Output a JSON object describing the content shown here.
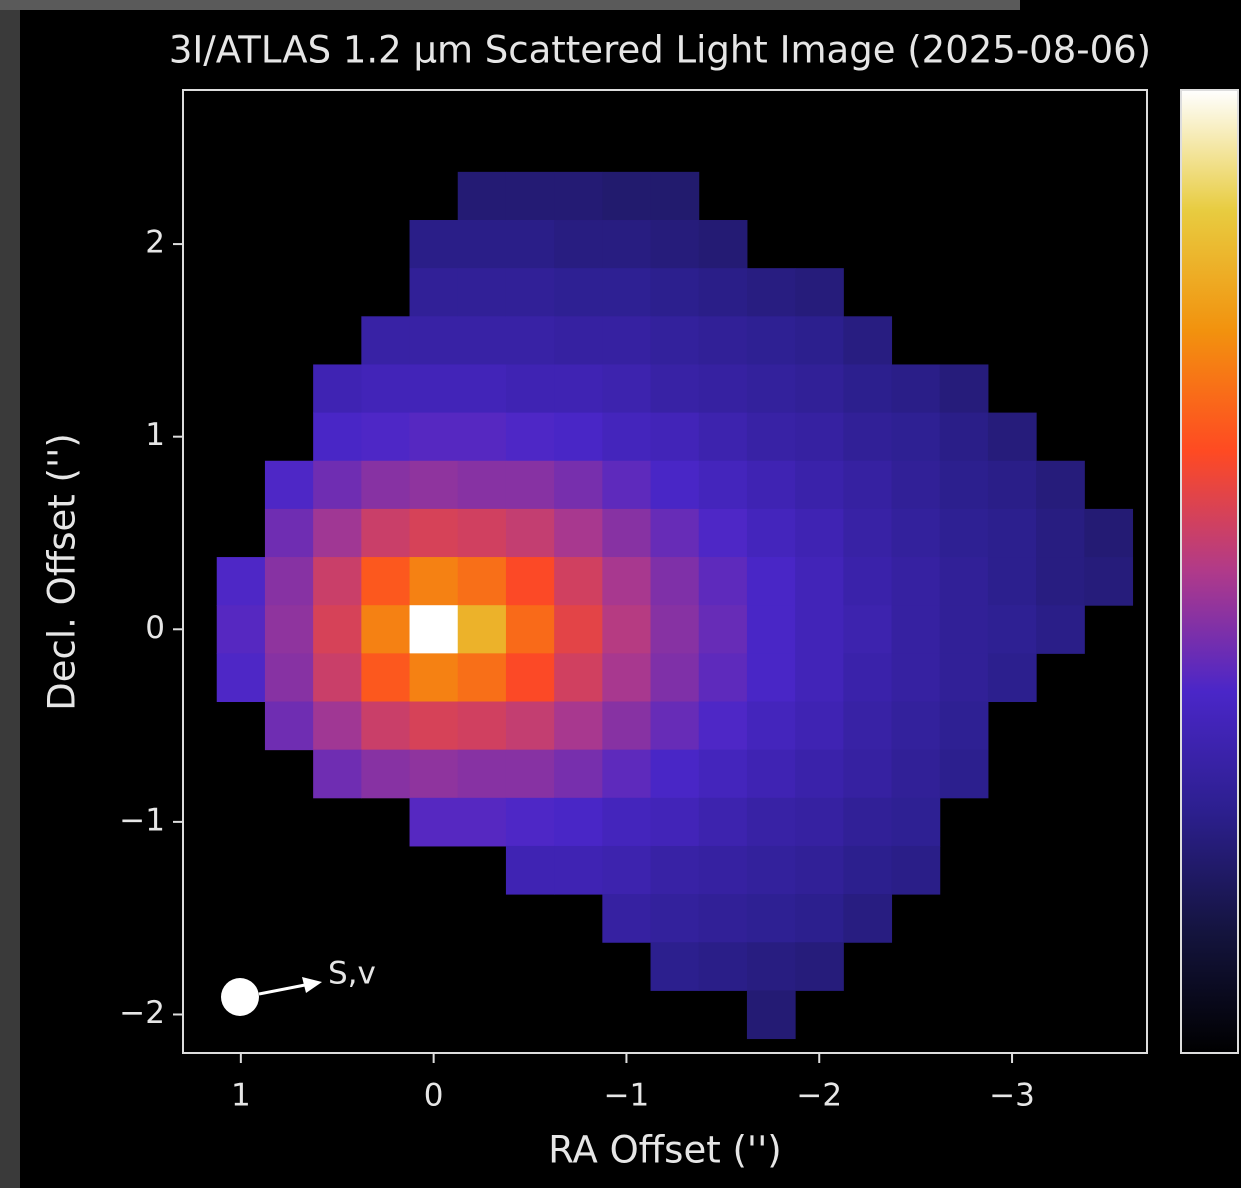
{
  "chart_data": {
    "type": "heatmap",
    "title": "3I/ATLAS 1.2 μm Scattered Light Image (2025-08-06)",
    "x_label": "RA Offset ('')",
    "y_label": "Decl. Offset ('')",
    "annotation": "S,v",
    "x": [
      1.25,
      1.0,
      0.75,
      0.5,
      0.25,
      0,
      -0.25,
      -0.5,
      -0.75,
      -1.0,
      -1.25,
      -1.5,
      -1.75,
      -2.0,
      -2.25,
      -2.5,
      -2.75,
      -3.0,
      -3.25,
      -3.5
    ],
    "y": [
      2.25,
      2.0,
      1.75,
      1.5,
      1.25,
      1.0,
      0.75,
      0.5,
      0.25,
      0,
      -0.25,
      -0.5,
      -0.75,
      -1.0,
      -1.25,
      -1.5,
      -1.75,
      -2.0
    ],
    "values": [
      [
        null,
        null,
        null,
        null,
        null,
        null,
        21,
        21,
        21,
        20,
        20,
        null,
        null,
        null,
        null,
        null,
        null,
        null,
        null,
        null
      ],
      [
        null,
        null,
        null,
        null,
        null,
        24,
        24,
        24,
        23,
        23,
        22,
        21,
        null,
        null,
        null,
        null,
        null,
        null,
        null,
        null
      ],
      [
        null,
        null,
        null,
        null,
        null,
        27,
        27,
        27,
        26,
        26,
        25,
        24,
        23,
        22,
        null,
        null,
        null,
        null,
        null,
        null
      ],
      [
        null,
        null,
        null,
        null,
        30,
        30,
        30,
        30,
        29,
        29,
        28,
        27,
        26,
        25,
        23,
        null,
        null,
        null,
        null,
        null
      ],
      [
        null,
        null,
        null,
        33,
        34,
        34,
        34,
        33,
        33,
        32,
        30,
        29,
        28,
        27,
        25,
        24,
        22,
        null,
        null,
        null
      ],
      [
        null,
        null,
        null,
        37,
        38,
        39,
        39,
        38,
        37,
        35,
        34,
        32,
        30,
        29,
        27,
        26,
        24,
        22,
        null,
        null
      ],
      [
        null,
        null,
        38,
        42,
        45,
        46,
        45,
        45,
        43,
        40,
        37,
        35,
        33,
        31,
        29,
        27,
        25,
        24,
        22,
        null
      ],
      [
        null,
        null,
        42,
        48,
        54,
        56,
        55,
        53,
        49,
        45,
        41,
        38,
        35,
        33,
        30,
        28,
        26,
        25,
        23,
        21
      ],
      [
        null,
        38,
        45,
        54,
        65,
        72,
        69,
        62,
        55,
        49,
        44,
        40,
        37,
        34,
        31,
        29,
        27,
        25,
        23,
        22
      ],
      [
        null,
        39,
        46,
        56,
        72,
        100,
        82,
        68,
        58,
        51,
        45,
        41,
        37,
        34,
        32,
        29,
        27,
        26,
        24,
        null
      ],
      [
        null,
        38,
        45,
        54,
        65,
        72,
        69,
        62,
        55,
        49,
        44,
        40,
        37,
        34,
        31,
        29,
        27,
        25,
        null,
        null
      ],
      [
        null,
        null,
        42,
        48,
        54,
        56,
        55,
        53,
        49,
        45,
        41,
        38,
        35,
        33,
        30,
        28,
        26,
        null,
        null,
        null
      ],
      [
        null,
        null,
        null,
        42,
        45,
        46,
        45,
        45,
        43,
        40,
        37,
        35,
        33,
        31,
        29,
        27,
        25,
        null,
        null,
        null
      ],
      [
        null,
        null,
        null,
        null,
        null,
        39,
        39,
        38,
        37,
        35,
        34,
        32,
        30,
        29,
        27,
        26,
        null,
        null,
        null,
        null
      ],
      [
        null,
        null,
        null,
        null,
        null,
        null,
        null,
        33,
        33,
        32,
        30,
        29,
        28,
        27,
        25,
        24,
        null,
        null,
        null,
        null
      ],
      [
        null,
        null,
        null,
        null,
        null,
        null,
        null,
        null,
        null,
        29,
        28,
        27,
        26,
        25,
        23,
        null,
        null,
        null,
        null,
        null
      ],
      [
        null,
        null,
        null,
        null,
        null,
        null,
        null,
        null,
        null,
        null,
        25,
        24,
        23,
        22,
        null,
        null,
        null,
        null,
        null,
        null
      ],
      [
        null,
        null,
        null,
        null,
        null,
        null,
        null,
        null,
        null,
        null,
        null,
        null,
        21,
        null,
        null,
        null,
        null,
        null,
        null,
        null
      ]
    ],
    "clim": [
      0,
      100
    ],
    "colormap": [
      "#000000",
      "#14143e",
      "#2c1f8e",
      "#4a26c8",
      "#b03a8a",
      "#ff4a22",
      "#f2920e",
      "#e8cc40",
      "#ffffff"
    ],
    "xlim": [
      1.3,
      -3.7
    ],
    "ylim": [
      -2.2,
      2.8
    ],
    "xticks": [
      1,
      0,
      {
        "value": -1,
        "label": "−1"
      },
      {
        "value": -2,
        "label": "−2"
      },
      {
        "value": -3,
        "label": "−3"
      }
    ],
    "yticks": [
      {
        "value": -2,
        "label": "−2"
      },
      {
        "value": -1,
        "label": "−1"
      },
      0,
      1,
      2
    ]
  }
}
